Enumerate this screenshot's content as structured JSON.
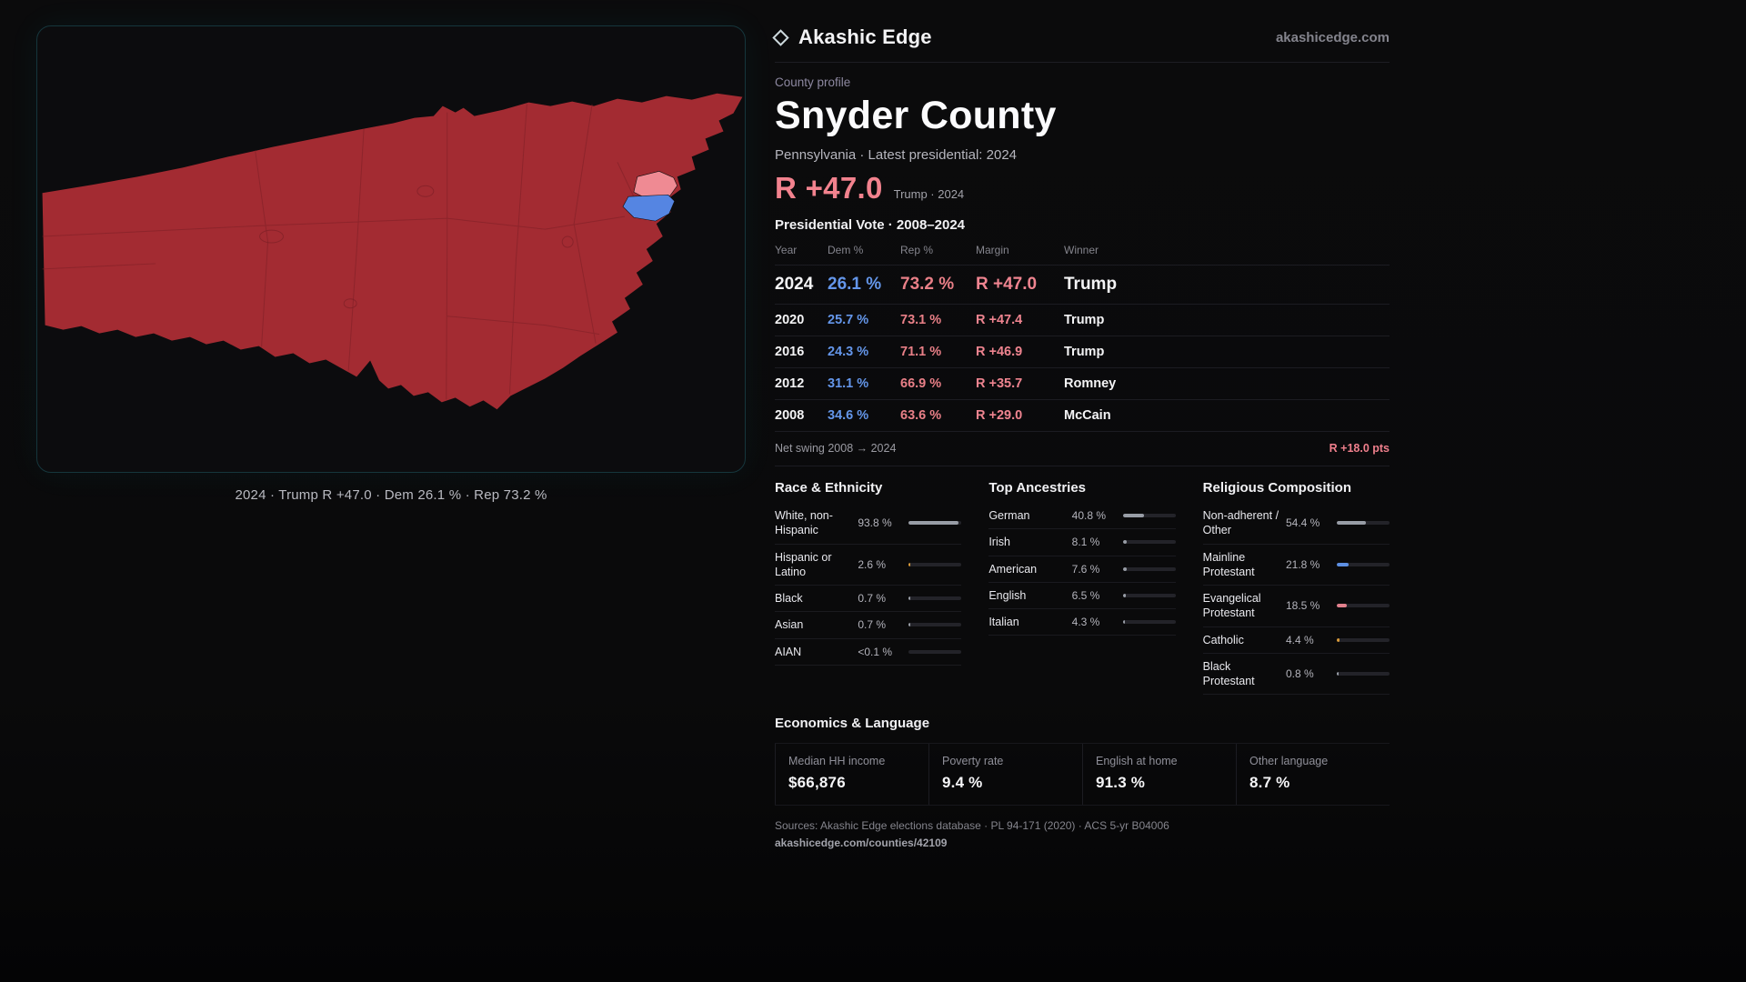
{
  "header": {
    "brand": "Akashic Edge",
    "domain": "akashicedge.com"
  },
  "profile": {
    "eyebrow": "County profile",
    "title": "Snyder County",
    "subtitle": "Pennsylvania · Latest presidential: 2024",
    "headline_margin": "R +47.0",
    "headline_context": "Trump · 2024"
  },
  "map": {
    "caption": "2024 · Trump R +47.0 · Dem 26.1 % · Rep 73.2 %",
    "county_fill": "#a32b32",
    "boundary_stroke": "#7e2026",
    "dem_precinct": "#5585e2",
    "lean_rep_precinct": "#ef8a93"
  },
  "vote_table": {
    "title": "Presidential Vote · 2008–2024",
    "headers": [
      "Year",
      "Dem %",
      "Rep %",
      "Margin",
      "Winner"
    ],
    "rows": [
      {
        "year": "2024",
        "dem": "26.1 %",
        "rep": "73.2 %",
        "margin": "R +47.0",
        "winner": "Trump"
      },
      {
        "year": "2020",
        "dem": "25.7 %",
        "rep": "73.1 %",
        "margin": "R +47.4",
        "winner": "Trump"
      },
      {
        "year": "2016",
        "dem": "24.3 %",
        "rep": "71.1 %",
        "margin": "R +46.9",
        "winner": "Trump"
      },
      {
        "year": "2012",
        "dem": "31.1 %",
        "rep": "66.9 %",
        "margin": "R +35.7",
        "winner": "Romney"
      },
      {
        "year": "2008",
        "dem": "34.6 %",
        "rep": "63.6 %",
        "margin": "R +29.0",
        "winner": "McCain"
      }
    ],
    "net_swing_label": "Net swing 2008 → 2024",
    "net_swing_value": "R +18.0 pts"
  },
  "race": {
    "title": "Race & Ethnicity",
    "rows": [
      {
        "label": "White, non-Hispanic",
        "value": "93.8 %",
        "pct": 93.8,
        "color": "#989da6"
      },
      {
        "label": "Hispanic or Latino",
        "value": "2.6 %",
        "pct": 2.6,
        "color": "#d99a38"
      },
      {
        "label": "Black",
        "value": "0.7 %",
        "pct": 0.7,
        "color": "#989da6"
      },
      {
        "label": "Asian",
        "value": "0.7 %",
        "pct": 0.7,
        "color": "#989da6"
      },
      {
        "label": "AIAN",
        "value": "<0.1 %",
        "pct": 0,
        "color": "#989da6"
      }
    ]
  },
  "ancestries": {
    "title": "Top Ancestries",
    "rows": [
      {
        "label": "German",
        "value": "40.8 %",
        "pct": 40.8,
        "color": "#989da6"
      },
      {
        "label": "Irish",
        "value": "8.1 %",
        "pct": 8.1,
        "color": "#989da6"
      },
      {
        "label": "American",
        "value": "7.6 %",
        "pct": 7.6,
        "color": "#989da6"
      },
      {
        "label": "English",
        "value": "6.5 %",
        "pct": 6.5,
        "color": "#989da6"
      },
      {
        "label": "Italian",
        "value": "4.3 %",
        "pct": 4.3,
        "color": "#989da6"
      }
    ]
  },
  "religion": {
    "title": "Religious Composition",
    "rows": [
      {
        "label": "Non-adherent / Other",
        "value": "54.4 %",
        "pct": 54.4,
        "color": "#989da6"
      },
      {
        "label": "Mainline Protestant",
        "value": "21.8 %",
        "pct": 21.8,
        "color": "#5d8fe3"
      },
      {
        "label": "Evangelical Protestant",
        "value": "18.5 %",
        "pct": 18.5,
        "color": "#e2808d"
      },
      {
        "label": "Catholic",
        "value": "4.4 %",
        "pct": 4.4,
        "color": "#d99a38"
      },
      {
        "label": "Black Protestant",
        "value": "0.8 %",
        "pct": 0.8,
        "color": "#989da6"
      }
    ]
  },
  "economics": {
    "title": "Economics & Language",
    "stats": [
      {
        "label": "Median HH income",
        "value": "$66,876"
      },
      {
        "label": "Poverty rate",
        "value": "9.4 %"
      },
      {
        "label": "English at home",
        "value": "91.3 %"
      },
      {
        "label": "Other language",
        "value": "8.7 %"
      }
    ]
  },
  "footer": {
    "sources": "Sources: Akashic Edge elections database · PL 94-171 (2020) · ACS 5-yr B04006",
    "url": "akashicedge.com/counties/42109"
  }
}
